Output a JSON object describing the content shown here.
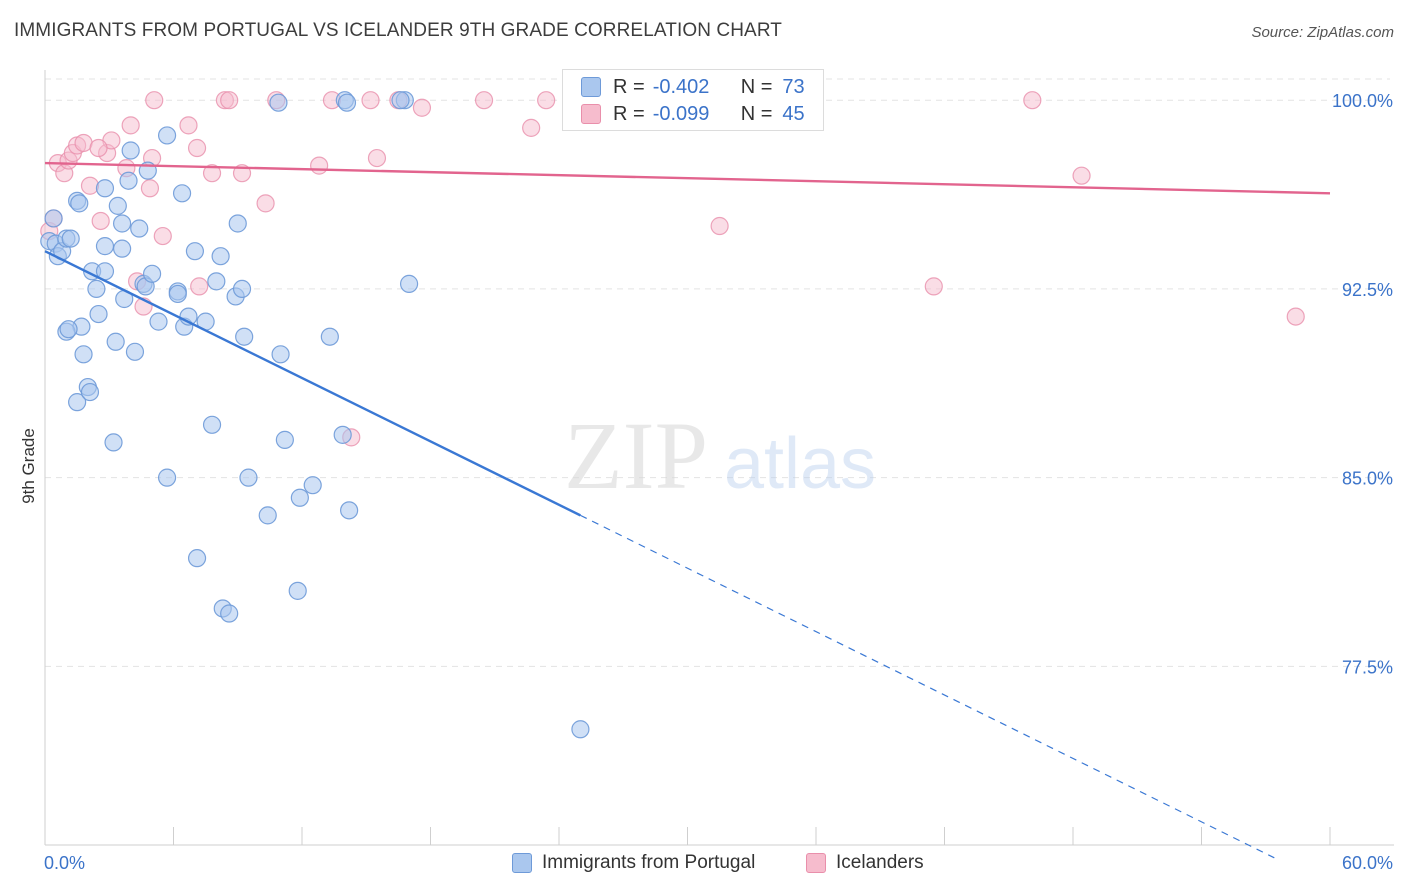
{
  "header": {
    "title": "IMMIGRANTS FROM PORTUGAL VS ICELANDER 9TH GRADE CORRELATION CHART",
    "source": "Source: ZipAtlas.com"
  },
  "watermark": {
    "zip": "ZIP",
    "atlas": "atlas"
  },
  "stats_legend": {
    "rows": [
      {
        "r_label": "R =",
        "r_value": "-0.402",
        "n_label": "N =",
        "n_value": "73"
      },
      {
        "r_label": "R =",
        "r_value": "-0.099",
        "n_label": "N =",
        "n_value": "45"
      }
    ]
  },
  "bottom_legend": {
    "items": [
      {
        "label": "Immigrants from Portugal"
      },
      {
        "label": "Icelanders"
      }
    ]
  },
  "colors": {
    "blue_fill": "#aac7ee",
    "blue_stroke": "#6e9ad8",
    "blue_line": "#3a78d4",
    "pink_fill": "#f6bccd",
    "pink_stroke": "#e98fab",
    "pink_line": "#e2648e",
    "tick_label": "#3b73c9",
    "grid": "#e3e3e3"
  },
  "chart_data": {
    "type": "scatter",
    "title": "IMMIGRANTS FROM PORTUGAL VS ICELANDER 9TH GRADE CORRELATION CHART",
    "xlabel": "",
    "ylabel": "9th Grade",
    "xlim": [
      0,
      60
    ],
    "ylim": [
      70.4,
      101.2
    ],
    "x_tick_labels": [
      "0.0%",
      "60.0%"
    ],
    "y_ticks": [
      77.5,
      85.0,
      92.5,
      100.0
    ],
    "y_tick_labels": [
      "77.5%",
      "85.0%",
      "92.5%",
      "100.0%"
    ],
    "grid": true,
    "legend_position": "bottom",
    "series": [
      {
        "name": "Immigrants from Portugal",
        "color": "blue",
        "r": -0.402,
        "n": 73,
        "trend": {
          "x0": 0,
          "y0": 94.0,
          "x1": 25,
          "y1": 83.5,
          "dashed_to_x": 60
        },
        "points": [
          [
            0.2,
            94.4
          ],
          [
            0.4,
            95.3
          ],
          [
            0.5,
            94.3
          ],
          [
            0.6,
            93.8
          ],
          [
            0.8,
            94.0
          ],
          [
            1.0,
            94.5
          ],
          [
            1.2,
            94.5
          ],
          [
            1.5,
            96.0
          ],
          [
            1.6,
            95.9
          ],
          [
            1.7,
            91.0
          ],
          [
            1.0,
            90.8
          ],
          [
            1.1,
            90.9
          ],
          [
            1.5,
            88.0
          ],
          [
            1.8,
            89.9
          ],
          [
            2.0,
            88.6
          ],
          [
            2.1,
            88.4
          ],
          [
            2.5,
            91.5
          ],
          [
            2.4,
            92.5
          ],
          [
            2.2,
            93.2
          ],
          [
            2.8,
            93.2
          ],
          [
            2.8,
            94.2
          ],
          [
            2.8,
            96.5
          ],
          [
            3.3,
            90.4
          ],
          [
            3.2,
            86.4
          ],
          [
            3.4,
            95.8
          ],
          [
            3.6,
            94.1
          ],
          [
            3.6,
            95.1
          ],
          [
            3.7,
            92.1
          ],
          [
            3.9,
            96.8
          ],
          [
            4.0,
            98.0
          ],
          [
            4.2,
            90.0
          ],
          [
            4.4,
            94.9
          ],
          [
            4.6,
            92.7
          ],
          [
            4.7,
            92.6
          ],
          [
            4.8,
            97.2
          ],
          [
            5.0,
            93.1
          ],
          [
            5.3,
            91.2
          ],
          [
            5.7,
            85.0
          ],
          [
            5.7,
            98.6
          ],
          [
            6.2,
            92.4
          ],
          [
            6.2,
            92.3
          ],
          [
            6.4,
            96.3
          ],
          [
            6.5,
            91.0
          ],
          [
            6.7,
            91.4
          ],
          [
            7.0,
            94.0
          ],
          [
            7.1,
            81.8
          ],
          [
            7.5,
            91.2
          ],
          [
            7.8,
            87.1
          ],
          [
            8.0,
            92.8
          ],
          [
            8.2,
            93.8
          ],
          [
            8.3,
            79.8
          ],
          [
            8.6,
            79.6
          ],
          [
            8.9,
            92.2
          ],
          [
            9.0,
            95.1
          ],
          [
            9.2,
            92.5
          ],
          [
            9.3,
            90.6
          ],
          [
            9.5,
            85.0
          ],
          [
            10.4,
            83.5
          ],
          [
            10.9,
            99.9
          ],
          [
            11.0,
            89.9
          ],
          [
            11.2,
            86.5
          ],
          [
            11.8,
            80.5
          ],
          [
            11.9,
            84.2
          ],
          [
            12.5,
            84.7
          ],
          [
            13.3,
            90.6
          ],
          [
            13.9,
            86.7
          ],
          [
            14.0,
            100.0
          ],
          [
            14.2,
            83.7
          ],
          [
            16.8,
            100.0
          ],
          [
            17.0,
            92.7
          ],
          [
            25.0,
            75.0
          ],
          [
            14.1,
            99.9
          ],
          [
            16.6,
            100.0
          ]
        ]
      },
      {
        "name": "Icelanders",
        "color": "pink",
        "r": -0.099,
        "n": 45,
        "trend": {
          "x0": 0,
          "y0": 97.5,
          "x1": 60,
          "y1": 96.3
        },
        "points": [
          [
            0.2,
            94.8
          ],
          [
            0.4,
            95.3
          ],
          [
            0.6,
            97.5
          ],
          [
            0.9,
            97.1
          ],
          [
            1.1,
            97.6
          ],
          [
            1.3,
            97.9
          ],
          [
            1.5,
            98.2
          ],
          [
            1.8,
            98.3
          ],
          [
            2.1,
            96.6
          ],
          [
            2.6,
            95.2
          ],
          [
            2.9,
            97.9
          ],
          [
            3.1,
            98.4
          ],
          [
            3.8,
            97.3
          ],
          [
            4.0,
            99.0
          ],
          [
            4.3,
            92.8
          ],
          [
            4.6,
            91.8
          ],
          [
            4.9,
            96.5
          ],
          [
            5.0,
            97.7
          ],
          [
            5.1,
            100.0
          ],
          [
            5.5,
            94.6
          ],
          [
            6.7,
            99.0
          ],
          [
            7.1,
            98.1
          ],
          [
            7.2,
            92.6
          ],
          [
            7.8,
            97.1
          ],
          [
            8.4,
            100.0
          ],
          [
            8.6,
            100.0
          ],
          [
            9.2,
            97.1
          ],
          [
            10.3,
            95.9
          ],
          [
            10.8,
            100.0
          ],
          [
            12.8,
            97.4
          ],
          [
            13.4,
            100.0
          ],
          [
            14.3,
            86.6
          ],
          [
            15.2,
            100.0
          ],
          [
            15.5,
            97.7
          ],
          [
            16.5,
            100.0
          ],
          [
            17.6,
            99.7
          ],
          [
            20.5,
            100.0
          ],
          [
            22.7,
            98.9
          ],
          [
            23.4,
            100.0
          ],
          [
            31.5,
            95.0
          ],
          [
            41.5,
            92.6
          ],
          [
            46.1,
            100.0
          ],
          [
            48.4,
            97.0
          ],
          [
            58.4,
            91.4
          ],
          [
            2.5,
            98.1
          ]
        ]
      }
    ]
  },
  "axes": {
    "ylabel": "9th Grade"
  }
}
